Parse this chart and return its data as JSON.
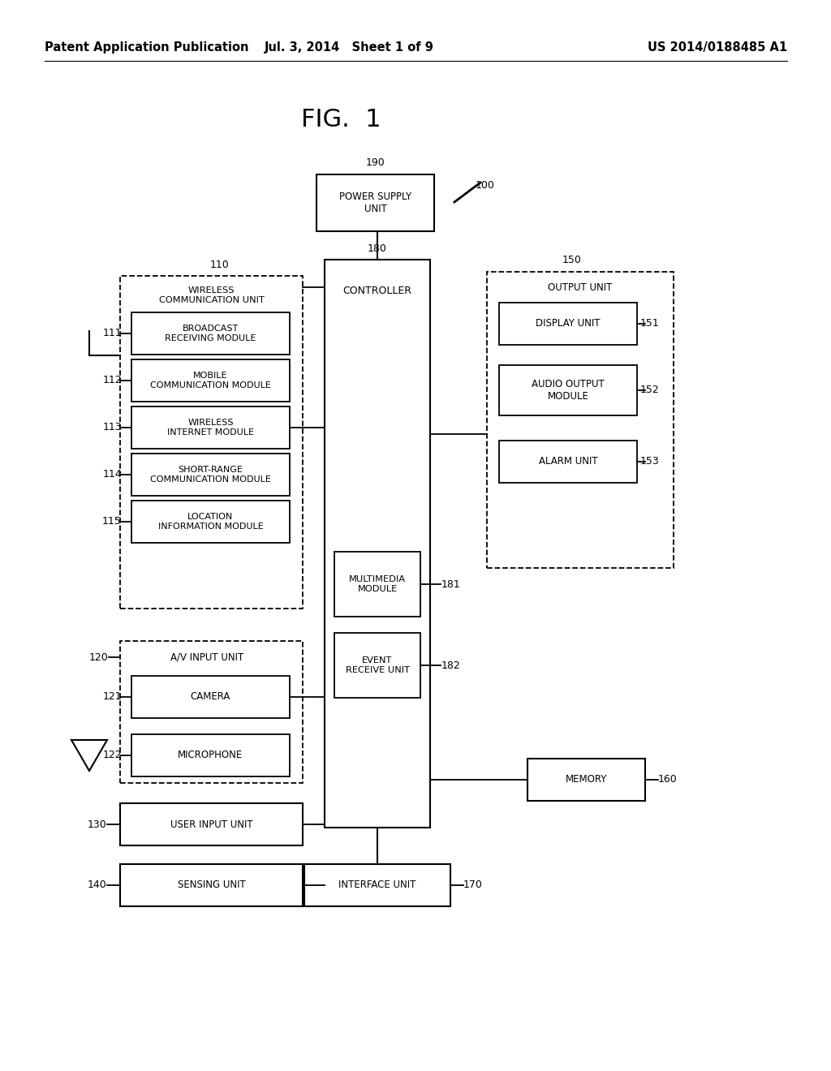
{
  "header_left": "Patent Application Publication",
  "header_mid": "Jul. 3, 2014   Sheet 1 of 9",
  "header_right": "US 2014/0188485 A1",
  "fig_label": "FIG.  1",
  "bg_color": "#ffffff",
  "line_color": "#000000",
  "text_color": "#000000"
}
